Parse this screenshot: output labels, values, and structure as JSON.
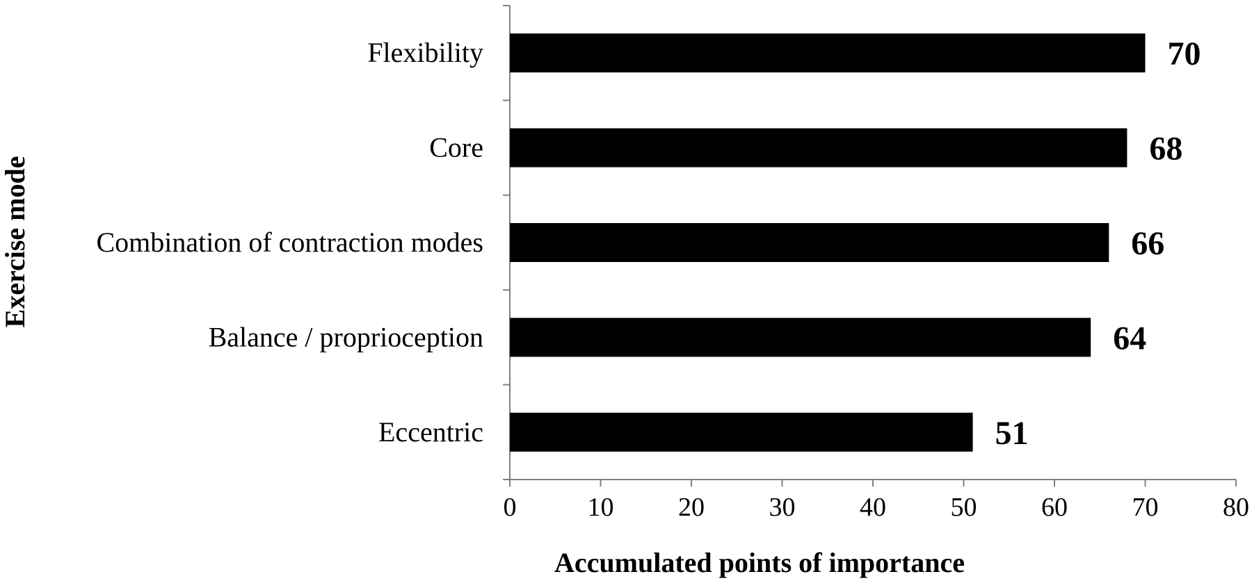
{
  "chart_data": {
    "type": "bar",
    "orientation": "horizontal",
    "categories": [
      "Flexibility",
      "Core",
      "Combination of contraction modes",
      "Balance / proprioception",
      "Eccentric"
    ],
    "values": [
      70,
      68,
      66,
      64,
      51
    ],
    "data_labels": [
      "70",
      "68",
      "66",
      "64",
      "51"
    ],
    "xlabel": "Accumulated points of importance",
    "ylabel": "Exercise mode",
    "xlim": [
      0,
      80
    ],
    "xticks": [
      0,
      10,
      20,
      30,
      40,
      50,
      60,
      70,
      80
    ],
    "xtick_labels": [
      "0",
      "10",
      "20",
      "30",
      "40",
      "50",
      "60",
      "70",
      "80"
    ],
    "grid": false,
    "legend": "none",
    "bar_color": "#000000"
  }
}
